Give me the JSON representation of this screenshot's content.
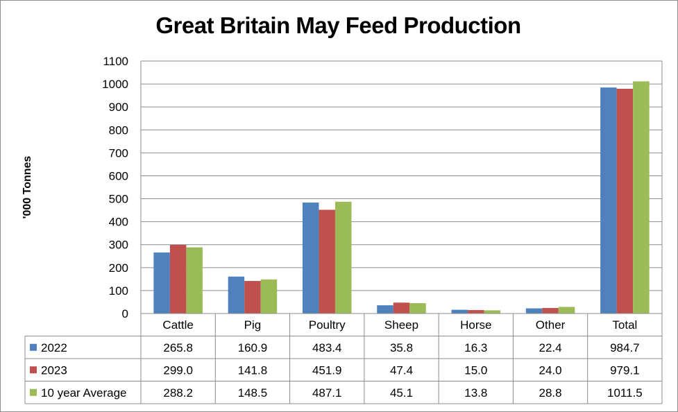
{
  "chart_data": {
    "type": "bar",
    "title": "Great Britain May Feed Production",
    "xlabel": "",
    "ylabel": "'000 Tonnes",
    "ylim": [
      0,
      1100
    ],
    "yticks": [
      "0",
      "100",
      "200",
      "300",
      "400",
      "500",
      "600",
      "700",
      "800",
      "900",
      "1000",
      "1100"
    ],
    "grid": true,
    "legend": "data-table-left",
    "categories": [
      "Cattle",
      "Pig",
      "Poultry",
      "Sheep",
      "Horse",
      "Other",
      "Total"
    ],
    "series": [
      {
        "name": "2022",
        "color": "#4f81bd",
        "values": [
          265.8,
          160.9,
          483.4,
          35.8,
          16.3,
          22.4,
          984.7
        ],
        "labels": [
          "265.8",
          "160.9",
          "483.4",
          "35.8",
          "16.3",
          "22.4",
          "984.7"
        ]
      },
      {
        "name": "2023",
        "color": "#c0504d",
        "values": [
          299.0,
          141.8,
          451.9,
          47.4,
          15.0,
          24.0,
          979.1
        ],
        "labels": [
          "299.0",
          "141.8",
          "451.9",
          "47.4",
          "15.0",
          "24.0",
          "979.1"
        ]
      },
      {
        "name": "10 year Average",
        "color": "#9bbb59",
        "values": [
          288.2,
          148.5,
          487.1,
          45.1,
          13.8,
          28.8,
          1011.5
        ],
        "labels": [
          "288.2",
          "148.5",
          "487.1",
          "45.1",
          "13.8",
          "28.8",
          "1011.5"
        ]
      }
    ]
  }
}
